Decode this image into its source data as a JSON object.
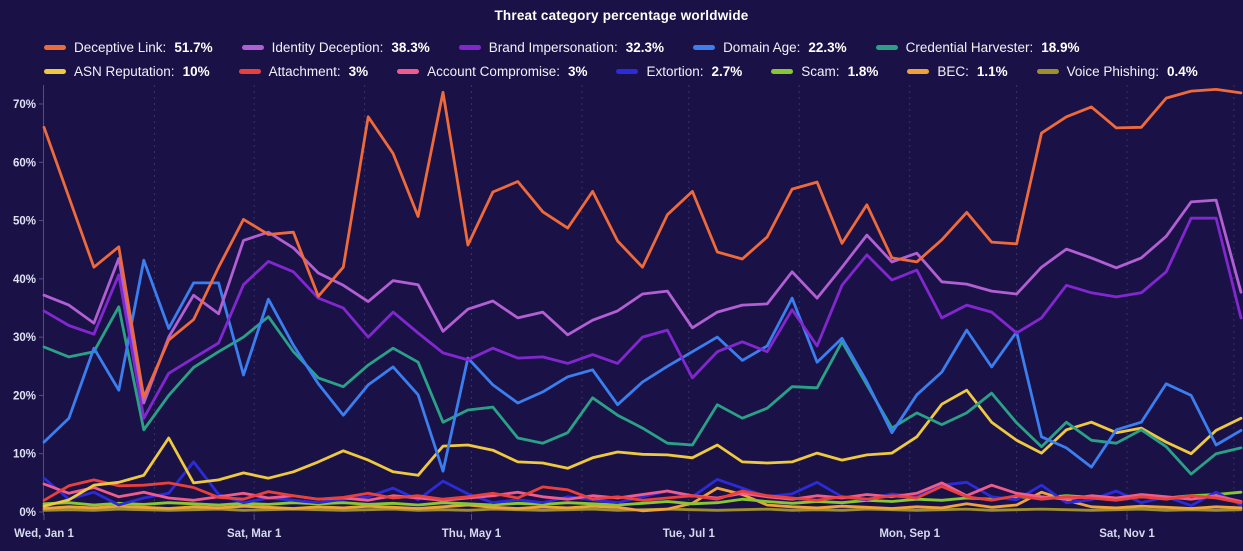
{
  "title": "Threat category percentage worldwide",
  "chart_data": {
    "type": "line",
    "title": "Threat category percentage worldwide",
    "grid": "vertical-dashed-monthly",
    "legend_position": "top",
    "x_unit": "weeks starting Wed, Jan 1",
    "points_per_series": 49,
    "ylim": [
      0,
      73
    ],
    "y_axis": {
      "tick_labels": [
        "0%",
        "10%",
        "20%",
        "30%",
        "40%",
        "50%",
        "60%",
        "70%"
      ],
      "tick_values": [
        0,
        10,
        20,
        30,
        40,
        50,
        60,
        70
      ]
    },
    "x_axis": {
      "tick_labels": [
        {
          "label": "Wed, Jan 1",
          "day": 0
        },
        {
          "label": "Sat, Mar 1",
          "day": 59
        },
        {
          "label": "Thu, May 1",
          "day": 120
        },
        {
          "label": "Tue, Jul 1",
          "day": 181
        },
        {
          "label": "Mon, Sep 1",
          "day": 243
        },
        {
          "label": "Sat, Nov 1",
          "day": 304
        }
      ],
      "gridline_days": [
        31,
        59,
        90,
        120,
        151,
        181,
        212,
        243,
        273,
        304,
        334
      ]
    },
    "legend_rows": [
      [
        0,
        1,
        2,
        3,
        4
      ],
      [
        5,
        6,
        7,
        8,
        9,
        10,
        11
      ]
    ],
    "series": [
      {
        "name": "Deceptive Link",
        "legend_value": "51.7%",
        "color": "#ef6a3a",
        "values": [
          66,
          54,
          42,
          45.5,
          19.7,
          29.5,
          33,
          42,
          50.2,
          47.6,
          48,
          37,
          42,
          67.8,
          61.5,
          50.7,
          72,
          45.8,
          54.9,
          56.7,
          51.5,
          48.7,
          55,
          46.5,
          42,
          51,
          55,
          44.6,
          43.4,
          47.2,
          55.4,
          56.6,
          46.1,
          52.7,
          43.6,
          42.9,
          46.7,
          51.4,
          46.3,
          46,
          65,
          67.8,
          69.5,
          65.9,
          66,
          71,
          72.2,
          72.5,
          71.9
        ]
      },
      {
        "name": "Identity Deception",
        "legend_value": "38.3%",
        "color": "#b15fd3",
        "values": [
          37.2,
          35.5,
          32.4,
          43.5,
          18.7,
          30,
          37.2,
          34,
          46.6,
          48,
          45.3,
          41,
          38.9,
          36.1,
          39.7,
          39,
          31,
          34.8,
          36.2,
          33.3,
          34.3,
          30.4,
          32.9,
          34.5,
          37.4,
          37.9,
          31.6,
          34.3,
          35.5,
          35.7,
          41.2,
          36.7,
          42,
          47.5,
          42.9,
          44.4,
          39.5,
          39.1,
          37.9,
          37.4,
          42,
          45.1,
          43.6,
          41.9,
          43.6,
          47.3,
          53.2,
          53.5,
          37.7
        ]
      },
      {
        "name": "Brand Impersonation",
        "legend_value": "32.3%",
        "color": "#8227cf",
        "values": [
          34.5,
          32,
          30.5,
          40.7,
          16.1,
          23.8,
          26.4,
          29,
          39,
          43,
          41.2,
          36.7,
          35,
          30,
          34.3,
          30.7,
          27.3,
          26.1,
          28.1,
          26.4,
          26.6,
          25.5,
          27,
          25.5,
          30,
          31.2,
          23,
          27.5,
          29.2,
          27.5,
          34.7,
          28.5,
          38.9,
          44.1,
          39.8,
          41.5,
          33.3,
          35.5,
          34.3,
          30.7,
          33.3,
          38.9,
          37.6,
          36.9,
          37.6,
          41.2,
          50.4,
          50.4,
          33.3
        ]
      },
      {
        "name": "Domain Age",
        "legend_value": "22.3%",
        "color": "#3b7ef0",
        "values": [
          12,
          16.1,
          28.1,
          20.9,
          43.2,
          31.5,
          39.3,
          39.3,
          23.5,
          36.5,
          28.6,
          22,
          16.6,
          21.8,
          24.9,
          20.1,
          7,
          26.4,
          21.8,
          18.7,
          20.6,
          23.2,
          24.4,
          18.4,
          22.3,
          25,
          27.5,
          30,
          26,
          28.5,
          36.7,
          25.7,
          29.8,
          22.3,
          13.6,
          20.1,
          24,
          31.2,
          24.9,
          30.9,
          12.9,
          11,
          7.7,
          14.1,
          15.4,
          22,
          20,
          11.5,
          14
        ]
      },
      {
        "name": "Credential Harvester",
        "legend_value": "18.9%",
        "color": "#2aa187",
        "values": [
          28.3,
          26.6,
          27.5,
          35.2,
          14.1,
          20,
          24.8,
          27.5,
          30,
          33.5,
          27.5,
          23,
          21.5,
          25.2,
          28.1,
          25.7,
          15.4,
          17.5,
          18,
          12.7,
          11.8,
          13.6,
          19.6,
          16.6,
          14.4,
          11.8,
          11.5,
          18.4,
          16.1,
          17.8,
          21.5,
          21.3,
          29.2,
          21.8,
          14.4,
          17,
          15,
          17,
          20.4,
          15.3,
          11.2,
          15.4,
          12.3,
          11.8,
          14.1,
          11.2,
          6.5,
          10,
          11
        ]
      },
      {
        "name": "ASN Reputation",
        "legend_value": "10%",
        "color": "#eec93f",
        "values": [
          1,
          2.1,
          4.6,
          5.1,
          6.3,
          12.7,
          5,
          5.5,
          6.7,
          5.8,
          6.9,
          8.6,
          10.5,
          8.9,
          6.9,
          6.3,
          11.3,
          11.5,
          10.6,
          8.6,
          8.4,
          7.5,
          9.3,
          10.3,
          9.9,
          9.8,
          9.3,
          11.5,
          8.6,
          8.4,
          8.6,
          10.1,
          8.9,
          9.8,
          10.1,
          12.9,
          18.5,
          20.9,
          15.4,
          12.3,
          10.1,
          14.1,
          15.4,
          13.6,
          14.4,
          12,
          10,
          14,
          16.1
        ]
      },
      {
        "name": "Attachment",
        "legend_value": "3%",
        "color": "#e8403c",
        "values": [
          2,
          4.5,
          5.5,
          4.5,
          4.6,
          5,
          4.2,
          2.5,
          2.2,
          3.5,
          2.8,
          2.2,
          2.5,
          3.2,
          2.4,
          2.8,
          2.2,
          2.6,
          3.2,
          2.4,
          4.3,
          3.8,
          2.2,
          2.6,
          2,
          2.4,
          2.8,
          2.2,
          3.6,
          2.8,
          2.4,
          2,
          2.6,
          2.2,
          2.8,
          2.4,
          4.4,
          2.6,
          2,
          2.8,
          2.2,
          2.6,
          2.4,
          2,
          2.6,
          2.2,
          2.8,
          2.4,
          1.6
        ]
      },
      {
        "name": "Account Compromise",
        "legend_value": "3%",
        "color": "#ee5c8d",
        "values": [
          4.8,
          3.2,
          4.2,
          2.6,
          3.4,
          2.4,
          2,
          2.6,
          3.2,
          2.4,
          2.8,
          2.2,
          2.4,
          2,
          2.8,
          2.4,
          2,
          2.4,
          2.8,
          3.4,
          2.6,
          2.2,
          2.8,
          2.4,
          3,
          3.6,
          2.8,
          2.4,
          3.2,
          2.6,
          2.2,
          2.8,
          2.4,
          3,
          2.6,
          3.2,
          5,
          2.8,
          4.6,
          3.2,
          2.6,
          2.2,
          2.8,
          2.4,
          3,
          2.6,
          2.2,
          2.8,
          1.8
        ]
      },
      {
        "name": "Extortion",
        "legend_value": "2.7%",
        "color": "#2b2bd9",
        "values": [
          5.8,
          2.2,
          3.4,
          1.2,
          2.4,
          3.2,
          8.6,
          3,
          1.6,
          2.4,
          2,
          1.6,
          2.2,
          2.6,
          4.1,
          2.1,
          5.3,
          3.1,
          1.6,
          2.1,
          1.6,
          2.6,
          2.1,
          1.6,
          2.6,
          3.6,
          2.6,
          5.6,
          4.1,
          2.6,
          3.1,
          5.1,
          2.6,
          2.1,
          3.1,
          2.6,
          4.6,
          5.1,
          2.6,
          2.1,
          4.6,
          1.6,
          2.1,
          3.6,
          1.6,
          2.6,
          1.1,
          3.4,
          1.2
        ]
      },
      {
        "name": "Scam",
        "legend_value": "1.8%",
        "color": "#86c832",
        "values": [
          1.4,
          1.6,
          1.2,
          1.5,
          1.3,
          1.6,
          1.4,
          1.2,
          1.5,
          1.3,
          1.6,
          1.4,
          1.6,
          1.3,
          1.5,
          1.2,
          1.6,
          1.4,
          1.2,
          1.5,
          1.3,
          1.6,
          1.4,
          1.2,
          1.5,
          1.8,
          1.4,
          1.6,
          2.2,
          1.8,
          1.5,
          1.8,
          1.6,
          2,
          1.8,
          2.2,
          2,
          2.4,
          2.2,
          2.6,
          2.4,
          2.8,
          2.5,
          2.2,
          2.6,
          2.4,
          2.8,
          3,
          3.4
        ]
      },
      {
        "name": "BEC",
        "legend_value": "1.1%",
        "color": "#efa23b",
        "values": [
          0.6,
          0.9,
          0.7,
          1,
          0.8,
          0.6,
          0.9,
          0.7,
          1,
          0.8,
          0.6,
          0.9,
          0.7,
          1,
          0.8,
          0.6,
          0.9,
          1.2,
          0.8,
          0.6,
          0.9,
          0.7,
          1,
          0.8,
          0.2,
          0.5,
          1.5,
          4.1,
          3,
          1.2,
          0.9,
          0.7,
          1,
          0.8,
          0.6,
          0.9,
          0.7,
          1.4,
          0.8,
          1.2,
          3.4,
          2,
          0.9,
          0.7,
          1,
          0.8,
          0.6,
          0.9,
          0.7
        ]
      },
      {
        "name": "Voice Phishing",
        "legend_value": "0.4%",
        "color": "#9d8e2e",
        "values": [
          0.3,
          0.4,
          0.3,
          0.5,
          0.4,
          0.3,
          0.4,
          0.5,
          0.3,
          0.4,
          0.5,
          0.4,
          0.3,
          0.4,
          0.5,
          0.3,
          0.4,
          0.3,
          0.5,
          0.4,
          0.3,
          0.4,
          0.5,
          0.3,
          0.4,
          0.5,
          0.4,
          0.3,
          0.4,
          0.5,
          0.3,
          0.4,
          0.3,
          0.5,
          0.4,
          0.3,
          0.4,
          0.5,
          0.3,
          0.4,
          0.5,
          0.4,
          0.3,
          0.4,
          0.5,
          0.3,
          0.4,
          0.3,
          0.4
        ]
      }
    ],
    "colors": {
      "background": "#1a1246",
      "gridline": "rgba(210,215,255,0.16)",
      "axis": "rgba(215,220,255,0.30)",
      "text": "#ffffff"
    }
  }
}
